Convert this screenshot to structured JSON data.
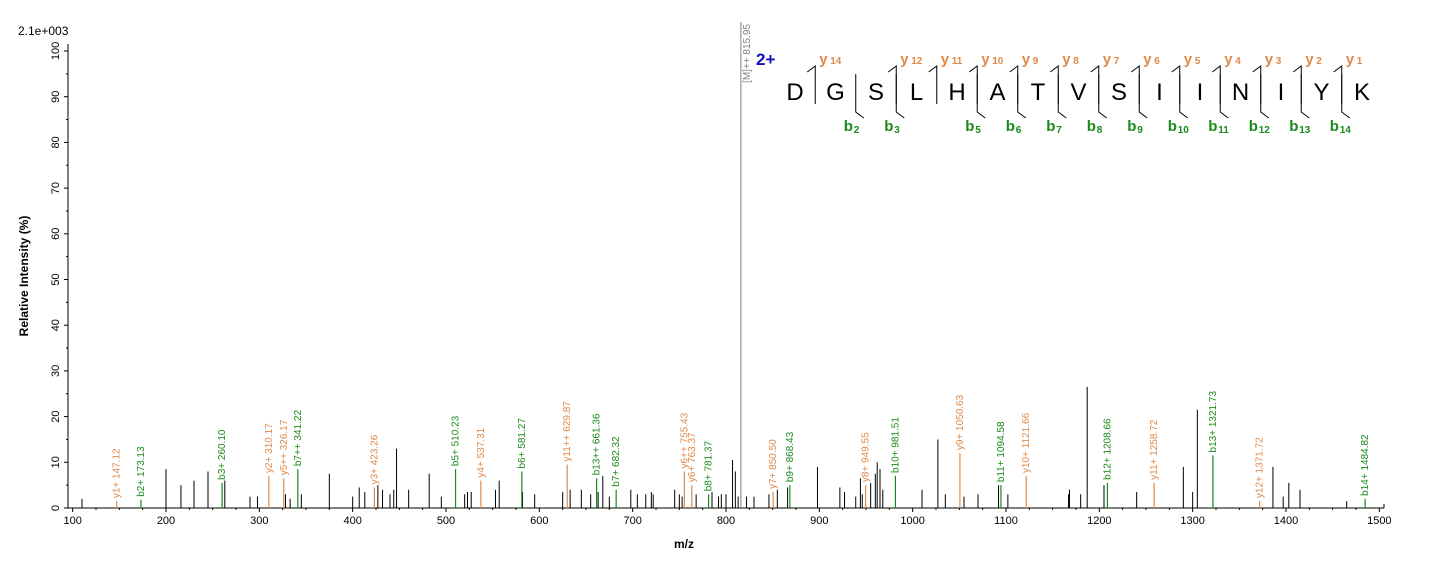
{
  "header": {
    "max_intensity_label": "2.1e+003"
  },
  "chart_data": {
    "type": "bar",
    "xlabel": "m/z",
    "ylabel": "Relative   Intensity (%)",
    "xlim": [
      95,
      1505
    ],
    "ylim": [
      0,
      100
    ],
    "x_ticks": [
      100,
      200,
      300,
      400,
      500,
      600,
      700,
      800,
      900,
      1000,
      1100,
      1200,
      1300,
      1400,
      1500
    ],
    "y_ticks": [
      0,
      10,
      20,
      30,
      40,
      50,
      60,
      70,
      80,
      90,
      100
    ],
    "grid": false,
    "colors": {
      "y_ion": "#e08a4b",
      "b_ion": "#1a8a1a",
      "unassigned": "#000000",
      "precursor": "#808080",
      "charge": "#1010c0"
    },
    "precursor": {
      "label": "[M]++ 815.95",
      "x": 815.95,
      "y": 100
    },
    "annotated_peaks": [
      {
        "label": "y1+ 147.12",
        "x": 147.12,
        "y": 1.5,
        "ion": "y"
      },
      {
        "label": "b2+ 173.13",
        "x": 173.13,
        "y": 1.8,
        "ion": "b"
      },
      {
        "label": "b3+ 260.10",
        "x": 260.1,
        "y": 5.5,
        "ion": "b"
      },
      {
        "label": "y2+ 310.17",
        "x": 310.17,
        "y": 7.0,
        "ion": "y"
      },
      {
        "label": "y5++ 326.17",
        "x": 326.17,
        "y": 6.5,
        "ion": "y"
      },
      {
        "label": "b7++ 341.22",
        "x": 341.22,
        "y": 8.5,
        "ion": "b"
      },
      {
        "label": "y3+ 423.26",
        "x": 423.26,
        "y": 4.5,
        "ion": "y"
      },
      {
        "label": "b5+ 510.23",
        "x": 510.23,
        "y": 8.5,
        "ion": "b"
      },
      {
        "label": "y4+ 537.31",
        "x": 537.31,
        "y": 6.0,
        "ion": "y"
      },
      {
        "label": "b6+ 581.27",
        "x": 581.27,
        "y": 8.0,
        "ion": "b"
      },
      {
        "label": "y11++ 629.87",
        "x": 629.87,
        "y": 9.5,
        "ion": "y"
      },
      {
        "label": "b13++ 661.36",
        "x": 661.36,
        "y": 6.5,
        "ion": "b"
      },
      {
        "label": "b7+ 682.32",
        "x": 682.32,
        "y": 4.0,
        "ion": "b"
      },
      {
        "label": "y6++ 755.43",
        "x": 755.43,
        "y": 8.0,
        "ion": "y"
      },
      {
        "label": "y6+ 763.37",
        "x": 763.37,
        "y": 5.0,
        "ion": "y"
      },
      {
        "label": "b8+ 781.37",
        "x": 781.37,
        "y": 3.0,
        "ion": "b"
      },
      {
        "label": "y7+ 850.50",
        "x": 850.5,
        "y": 3.5,
        "ion": "y"
      },
      {
        "label": "b9+ 868.43",
        "x": 868.43,
        "y": 5.0,
        "ion": "b"
      },
      {
        "label": "y8+ 949.55",
        "x": 949.55,
        "y": 5.0,
        "ion": "y"
      },
      {
        "label": "b10+ 981.51",
        "x": 981.51,
        "y": 7.0,
        "ion": "b"
      },
      {
        "label": "y9+ 1050.63",
        "x": 1050.63,
        "y": 12.0,
        "ion": "y"
      },
      {
        "label": "b11+ 1094.58",
        "x": 1094.58,
        "y": 5.0,
        "ion": "b"
      },
      {
        "label": "y10+ 1121.66",
        "x": 1121.66,
        "y": 7.0,
        "ion": "y"
      },
      {
        "label": "b12+ 1208.66",
        "x": 1208.66,
        "y": 5.5,
        "ion": "b"
      },
      {
        "label": "y11+ 1258.72",
        "x": 1258.72,
        "y": 5.5,
        "ion": "y"
      },
      {
        "label": "b13+ 1321.73",
        "x": 1321.73,
        "y": 11.5,
        "ion": "b"
      },
      {
        "label": "y12+ 1371.72",
        "x": 1371.72,
        "y": 1.5,
        "ion": "y"
      },
      {
        "label": "b14+ 1484.82",
        "x": 1484.82,
        "y": 2.0,
        "ion": "b"
      }
    ],
    "unassigned_peaks": [
      {
        "x": 110,
        "y": 2.0
      },
      {
        "x": 200,
        "y": 8.5
      },
      {
        "x": 216,
        "y": 5.0
      },
      {
        "x": 230,
        "y": 6.0
      },
      {
        "x": 245,
        "y": 8.0
      },
      {
        "x": 263,
        "y": 6.0
      },
      {
        "x": 290,
        "y": 2.5
      },
      {
        "x": 298,
        "y": 2.5
      },
      {
        "x": 328,
        "y": 3.0
      },
      {
        "x": 333,
        "y": 2.0
      },
      {
        "x": 345,
        "y": 3.0
      },
      {
        "x": 375,
        "y": 7.5
      },
      {
        "x": 400,
        "y": 2.5
      },
      {
        "x": 407,
        "y": 4.5
      },
      {
        "x": 413,
        "y": 3.5
      },
      {
        "x": 427,
        "y": 5.0
      },
      {
        "x": 432,
        "y": 4.0
      },
      {
        "x": 440,
        "y": 3.0
      },
      {
        "x": 444,
        "y": 4.0
      },
      {
        "x": 447,
        "y": 13.0
      },
      {
        "x": 460,
        "y": 4.0
      },
      {
        "x": 482,
        "y": 7.5
      },
      {
        "x": 495,
        "y": 2.5
      },
      {
        "x": 520,
        "y": 3.0
      },
      {
        "x": 523,
        "y": 3.5
      },
      {
        "x": 527,
        "y": 3.5
      },
      {
        "x": 553,
        "y": 4.0
      },
      {
        "x": 557,
        "y": 6.0
      },
      {
        "x": 582,
        "y": 3.5
      },
      {
        "x": 595,
        "y": 3.0
      },
      {
        "x": 625,
        "y": 3.5
      },
      {
        "x": 633,
        "y": 4.0
      },
      {
        "x": 645,
        "y": 4.0
      },
      {
        "x": 655,
        "y": 3.0
      },
      {
        "x": 663,
        "y": 3.5
      },
      {
        "x": 668,
        "y": 7.0
      },
      {
        "x": 675,
        "y": 2.5
      },
      {
        "x": 698,
        "y": 4.0
      },
      {
        "x": 705,
        "y": 3.0
      },
      {
        "x": 714,
        "y": 3.0
      },
      {
        "x": 720,
        "y": 3.5
      },
      {
        "x": 722,
        "y": 3.0
      },
      {
        "x": 745,
        "y": 4.0
      },
      {
        "x": 750,
        "y": 3.0
      },
      {
        "x": 753,
        "y": 2.5
      },
      {
        "x": 768,
        "y": 3.0
      },
      {
        "x": 785,
        "y": 3.5
      },
      {
        "x": 792,
        "y": 2.5
      },
      {
        "x": 795,
        "y": 3.0
      },
      {
        "x": 800,
        "y": 3.0
      },
      {
        "x": 807,
        "y": 10.5
      },
      {
        "x": 810,
        "y": 8.0
      },
      {
        "x": 813,
        "y": 2.5
      },
      {
        "x": 822,
        "y": 2.5
      },
      {
        "x": 830,
        "y": 2.5
      },
      {
        "x": 846,
        "y": 3.0
      },
      {
        "x": 855,
        "y": 4.0
      },
      {
        "x": 866,
        "y": 4.5
      },
      {
        "x": 898,
        "y": 9.0
      },
      {
        "x": 922,
        "y": 4.5
      },
      {
        "x": 927,
        "y": 3.5
      },
      {
        "x": 939,
        "y": 2.5
      },
      {
        "x": 944,
        "y": 6.5
      },
      {
        "x": 946,
        "y": 3.0
      },
      {
        "x": 955,
        "y": 5.5
      },
      {
        "x": 960,
        "y": 7.5
      },
      {
        "x": 962,
        "y": 10.0
      },
      {
        "x": 965,
        "y": 8.5
      },
      {
        "x": 968,
        "y": 4.0
      },
      {
        "x": 1010,
        "y": 4.0
      },
      {
        "x": 1027,
        "y": 15.0
      },
      {
        "x": 1035,
        "y": 3.0
      },
      {
        "x": 1055,
        "y": 2.5
      },
      {
        "x": 1070,
        "y": 3.0
      },
      {
        "x": 1092,
        "y": 5.0
      },
      {
        "x": 1102,
        "y": 3.0
      },
      {
        "x": 1167,
        "y": 3.0
      },
      {
        "x": 1168,
        "y": 4.0
      },
      {
        "x": 1180,
        "y": 3.0
      },
      {
        "x": 1187,
        "y": 26.5
      },
      {
        "x": 1205,
        "y": 5.0
      },
      {
        "x": 1240,
        "y": 3.5
      },
      {
        "x": 1290,
        "y": 9.0
      },
      {
        "x": 1300,
        "y": 3.5
      },
      {
        "x": 1305,
        "y": 21.5
      },
      {
        "x": 1386,
        "y": 9.0
      },
      {
        "x": 1397,
        "y": 2.5
      },
      {
        "x": 1403,
        "y": 5.5
      },
      {
        "x": 1415,
        "y": 4.0
      },
      {
        "x": 1465,
        "y": 1.5
      }
    ],
    "peptide": {
      "charge_label": "2+",
      "residues": [
        "D",
        "G",
        "S",
        "L",
        "H",
        "A",
        "T",
        "V",
        "S",
        "I",
        "I",
        "N",
        "I",
        "Y",
        "K"
      ],
      "y_ions": [
        {
          "gap": 1,
          "label": "y14"
        },
        {
          "gap": 3,
          "label": "y12"
        },
        {
          "gap": 4,
          "label": "y11"
        },
        {
          "gap": 5,
          "label": "y10"
        },
        {
          "gap": 6,
          "label": "y9"
        },
        {
          "gap": 7,
          "label": "y8"
        },
        {
          "gap": 8,
          "label": "y7"
        },
        {
          "gap": 9,
          "label": "y6"
        },
        {
          "gap": 10,
          "label": "y5"
        },
        {
          "gap": 11,
          "label": "y4"
        },
        {
          "gap": 12,
          "label": "y3"
        },
        {
          "gap": 13,
          "label": "y2"
        },
        {
          "gap": 14,
          "label": "y1"
        }
      ],
      "b_ions": [
        {
          "gap": 2,
          "label": "b2"
        },
        {
          "gap": 3,
          "label": "b3"
        },
        {
          "gap": 5,
          "label": "b5"
        },
        {
          "gap": 6,
          "label": "b6"
        },
        {
          "gap": 7,
          "label": "b7"
        },
        {
          "gap": 8,
          "label": "b8"
        },
        {
          "gap": 9,
          "label": "b9"
        },
        {
          "gap": 10,
          "label": "b10"
        },
        {
          "gap": 11,
          "label": "b11"
        },
        {
          "gap": 12,
          "label": "b12"
        },
        {
          "gap": 13,
          "label": "b13"
        },
        {
          "gap": 14,
          "label": "b14"
        }
      ]
    }
  }
}
